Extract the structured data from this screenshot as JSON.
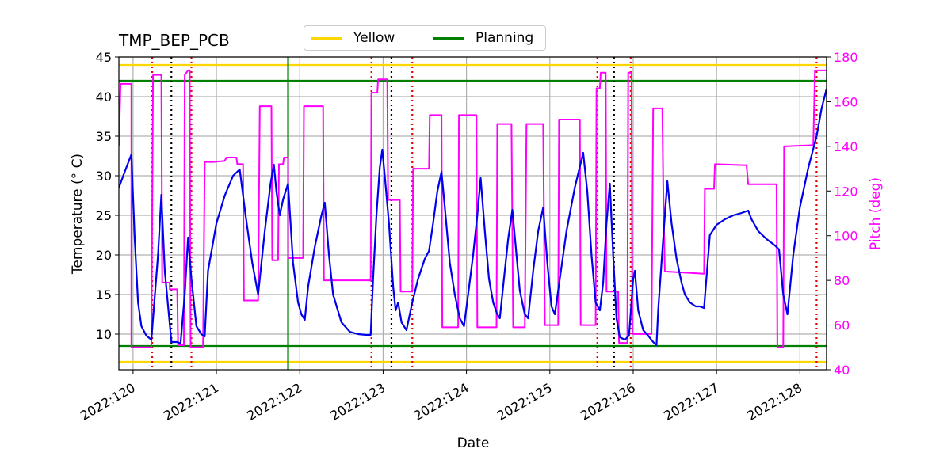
{
  "chart_data": {
    "type": "line",
    "title": "TMP_BEP_PCB",
    "xlabel": "Date",
    "ylabel_left": "Temperature ($^\\circ$C)",
    "ylabel_left_display": "Temperature (° C)",
    "ylabel_right": "Pitch (deg)",
    "xlim": [
      119.83,
      128.32
    ],
    "ylim_left": [
      5.5,
      45
    ],
    "ylim_right": [
      40,
      180
    ],
    "x_ticks": [
      {
        "value": 120,
        "label": "2022:120"
      },
      {
        "value": 121,
        "label": "2022:121"
      },
      {
        "value": 122,
        "label": "2022:122"
      },
      {
        "value": 123,
        "label": "2022:123"
      },
      {
        "value": 124,
        "label": "2022:124"
      },
      {
        "value": 125,
        "label": "2022:125"
      },
      {
        "value": 126,
        "label": "2022:126"
      },
      {
        "value": 127,
        "label": "2022:127"
      },
      {
        "value": 128,
        "label": "2022:128"
      }
    ],
    "y_ticks_left": [
      10,
      15,
      20,
      25,
      30,
      35,
      40,
      45
    ],
    "y_ticks_right": [
      40,
      60,
      80,
      100,
      120,
      140,
      160,
      180
    ],
    "grid": true,
    "legend": {
      "position": "top-center",
      "entries": [
        {
          "label": "Yellow",
          "color": "#ffd700"
        },
        {
          "label": "Planning",
          "color": "#008000"
        }
      ]
    },
    "limits": {
      "yellow": [
        6.5,
        44
      ],
      "planning": [
        8.5,
        42
      ]
    },
    "colors": {
      "temperature": "#0000ee",
      "pitch": "#ff00ff",
      "yellow": "#ffd700",
      "planning": "#008000",
      "red_marker": "#ee0000",
      "black_marker": "#000000",
      "right_axis": "#ff00ff",
      "grid": "#b0b0b0"
    },
    "now_marker_x": 121.86,
    "red_dotted_x": [
      120.23,
      120.7,
      122.86,
      123.35,
      125.57,
      125.97,
      128.2
    ],
    "black_dotted_x": [
      120.46,
      123.1,
      125.77
    ],
    "temperature_series": [
      [
        119.83,
        28.5
      ],
      [
        119.9,
        30.5
      ],
      [
        119.98,
        32.7
      ],
      [
        120.02,
        22
      ],
      [
        120.06,
        14
      ],
      [
        120.1,
        11
      ],
      [
        120.16,
        9.8
      ],
      [
        120.22,
        9.3
      ],
      [
        120.3,
        20
      ],
      [
        120.34,
        27.6
      ],
      [
        120.38,
        18
      ],
      [
        120.46,
        9
      ],
      [
        120.53,
        9
      ],
      [
        120.57,
        8.8
      ],
      [
        120.62,
        15
      ],
      [
        120.66,
        22.2
      ],
      [
        120.7,
        17
      ],
      [
        120.76,
        11
      ],
      [
        120.82,
        10
      ],
      [
        120.86,
        9.7
      ],
      [
        120.9,
        18
      ],
      [
        121.0,
        24
      ],
      [
        121.1,
        27.5
      ],
      [
        121.2,
        30
      ],
      [
        121.28,
        30.8
      ],
      [
        121.35,
        25
      ],
      [
        121.43,
        19
      ],
      [
        121.5,
        15
      ],
      [
        121.58,
        23
      ],
      [
        121.65,
        29
      ],
      [
        121.69,
        31.4
      ],
      [
        121.72,
        28
      ],
      [
        121.76,
        25
      ],
      [
        121.8,
        27
      ],
      [
        121.86,
        29
      ],
      [
        121.92,
        19
      ],
      [
        121.98,
        14
      ],
      [
        122.02,
        12.5
      ],
      [
        122.06,
        11.8
      ],
      [
        122.1,
        16
      ],
      [
        122.18,
        21
      ],
      [
        122.26,
        25
      ],
      [
        122.3,
        26.6
      ],
      [
        122.35,
        20
      ],
      [
        122.4,
        15
      ],
      [
        122.5,
        11.5
      ],
      [
        122.6,
        10.3
      ],
      [
        122.7,
        10
      ],
      [
        122.8,
        9.9
      ],
      [
        122.85,
        9.9
      ],
      [
        122.88,
        17
      ],
      [
        122.92,
        25
      ],
      [
        122.96,
        31
      ],
      [
        122.99,
        33.3
      ],
      [
        123.02,
        30
      ],
      [
        123.07,
        24
      ],
      [
        123.12,
        16
      ],
      [
        123.15,
        13
      ],
      [
        123.18,
        14
      ],
      [
        123.22,
        11.5
      ],
      [
        123.28,
        10.5
      ],
      [
        123.35,
        14
      ],
      [
        123.42,
        17
      ],
      [
        123.5,
        19.5
      ],
      [
        123.55,
        20.5
      ],
      [
        123.6,
        24
      ],
      [
        123.65,
        28
      ],
      [
        123.7,
        30.5
      ],
      [
        123.74,
        26
      ],
      [
        123.8,
        19
      ],
      [
        123.86,
        15
      ],
      [
        123.92,
        12
      ],
      [
        123.97,
        11
      ],
      [
        124.02,
        15
      ],
      [
        124.08,
        20
      ],
      [
        124.13,
        25
      ],
      [
        124.17,
        29.7
      ],
      [
        124.22,
        23
      ],
      [
        124.27,
        17
      ],
      [
        124.32,
        14
      ],
      [
        124.37,
        12.5
      ],
      [
        124.4,
        12
      ],
      [
        124.45,
        17
      ],
      [
        124.5,
        22
      ],
      [
        124.55,
        25.7
      ],
      [
        124.6,
        20
      ],
      [
        124.64,
        15.5
      ],
      [
        124.7,
        12.5
      ],
      [
        124.74,
        12
      ],
      [
        124.8,
        18
      ],
      [
        124.86,
        23
      ],
      [
        124.92,
        26
      ],
      [
        124.97,
        19
      ],
      [
        125.02,
        13.5
      ],
      [
        125.06,
        12.5
      ],
      [
        125.12,
        17
      ],
      [
        125.2,
        23
      ],
      [
        125.3,
        28.5
      ],
      [
        125.4,
        32.9
      ],
      [
        125.45,
        28
      ],
      [
        125.5,
        20
      ],
      [
        125.55,
        14
      ],
      [
        125.6,
        13
      ],
      [
        125.64,
        16.5
      ],
      [
        125.68,
        24
      ],
      [
        125.72,
        29
      ],
      [
        125.76,
        20
      ],
      [
        125.8,
        12
      ],
      [
        125.84,
        9.6
      ],
      [
        125.9,
        9.3
      ],
      [
        125.95,
        9.8
      ],
      [
        126.0,
        17
      ],
      [
        126.02,
        18
      ],
      [
        126.06,
        13
      ],
      [
        126.12,
        10.5
      ],
      [
        126.18,
        9.8
      ],
      [
        126.24,
        9
      ],
      [
        126.28,
        8.6
      ],
      [
        126.3,
        13
      ],
      [
        126.36,
        22
      ],
      [
        126.41,
        29.3
      ],
      [
        126.46,
        24
      ],
      [
        126.52,
        19.5
      ],
      [
        126.58,
        16.5
      ],
      [
        126.62,
        15
      ],
      [
        126.68,
        14
      ],
      [
        126.75,
        13.5
      ],
      [
        126.8,
        13.5
      ],
      [
        126.85,
        13.3
      ],
      [
        126.92,
        22.5
      ],
      [
        127.0,
        23.8
      ],
      [
        127.1,
        24.5
      ],
      [
        127.2,
        25
      ],
      [
        127.3,
        25.3
      ],
      [
        127.38,
        25.6
      ],
      [
        127.42,
        24.5
      ],
      [
        127.5,
        23
      ],
      [
        127.6,
        22
      ],
      [
        127.7,
        21.2
      ],
      [
        127.75,
        20.7
      ],
      [
        127.8,
        15
      ],
      [
        127.85,
        12.5
      ],
      [
        127.92,
        20
      ],
      [
        128.0,
        26
      ],
      [
        128.1,
        31
      ],
      [
        128.2,
        35
      ],
      [
        128.26,
        38.5
      ],
      [
        128.32,
        41
      ]
    ],
    "pitch_series": [
      [
        119.83,
        140
      ],
      [
        119.85,
        168
      ],
      [
        119.98,
        168
      ],
      [
        119.98,
        50
      ],
      [
        120.22,
        50
      ],
      [
        120.24,
        172
      ],
      [
        120.34,
        172
      ],
      [
        120.35,
        79
      ],
      [
        120.44,
        79
      ],
      [
        120.44,
        76
      ],
      [
        120.53,
        76
      ],
      [
        120.54,
        51
      ],
      [
        120.61,
        51
      ],
      [
        120.62,
        172
      ],
      [
        120.66,
        174
      ],
      [
        120.68,
        174
      ],
      [
        120.69,
        50
      ],
      [
        120.84,
        50
      ],
      [
        120.86,
        133
      ],
      [
        120.96,
        133
      ],
      [
        121.1,
        133.5
      ],
      [
        121.12,
        135
      ],
      [
        121.24,
        135
      ],
      [
        121.25,
        132
      ],
      [
        121.32,
        132
      ],
      [
        121.33,
        71
      ],
      [
        121.5,
        71
      ],
      [
        121.52,
        158
      ],
      [
        121.66,
        158
      ],
      [
        121.67,
        89
      ],
      [
        121.74,
        89
      ],
      [
        121.75,
        132
      ],
      [
        121.8,
        132
      ],
      [
        121.81,
        135
      ],
      [
        121.86,
        135
      ],
      [
        121.86,
        90
      ],
      [
        122.04,
        90
      ],
      [
        122.05,
        158
      ],
      [
        122.28,
        158
      ],
      [
        122.29,
        80
      ],
      [
        122.85,
        80
      ],
      [
        122.86,
        164
      ],
      [
        122.93,
        164
      ],
      [
        122.94,
        170
      ],
      [
        123.05,
        170
      ],
      [
        123.06,
        116
      ],
      [
        123.2,
        116
      ],
      [
        123.21,
        75
      ],
      [
        123.35,
        75
      ],
      [
        123.36,
        130
      ],
      [
        123.55,
        130
      ],
      [
        123.56,
        154
      ],
      [
        123.7,
        154
      ],
      [
        123.71,
        59
      ],
      [
        123.9,
        59
      ],
      [
        123.91,
        154
      ],
      [
        124.12,
        154
      ],
      [
        124.13,
        59
      ],
      [
        124.36,
        59
      ],
      [
        124.37,
        150
      ],
      [
        124.54,
        150
      ],
      [
        124.56,
        59
      ],
      [
        124.7,
        59
      ],
      [
        124.72,
        150
      ],
      [
        124.92,
        150
      ],
      [
        124.94,
        60
      ],
      [
        125.1,
        60
      ],
      [
        125.11,
        152
      ],
      [
        125.36,
        152
      ],
      [
        125.37,
        60
      ],
      [
        125.55,
        60
      ],
      [
        125.56,
        166
      ],
      [
        125.6,
        166
      ],
      [
        125.61,
        173
      ],
      [
        125.67,
        173
      ],
      [
        125.68,
        75
      ],
      [
        125.82,
        75
      ],
      [
        125.83,
        52
      ],
      [
        125.93,
        52
      ],
      [
        125.94,
        173
      ],
      [
        125.98,
        173
      ],
      [
        125.99,
        56
      ],
      [
        126.22,
        56
      ],
      [
        126.24,
        157
      ],
      [
        126.35,
        157
      ],
      [
        126.36,
        124
      ],
      [
        126.38,
        84
      ],
      [
        126.85,
        83
      ],
      [
        126.86,
        121
      ],
      [
        126.97,
        121
      ],
      [
        126.98,
        132
      ],
      [
        127.36,
        131.5
      ],
      [
        127.38,
        123
      ],
      [
        127.72,
        123
      ],
      [
        127.73,
        50
      ],
      [
        127.8,
        50
      ],
      [
        127.81,
        140
      ],
      [
        128.16,
        140.5
      ],
      [
        128.18,
        174
      ],
      [
        128.32,
        174
      ]
    ]
  }
}
